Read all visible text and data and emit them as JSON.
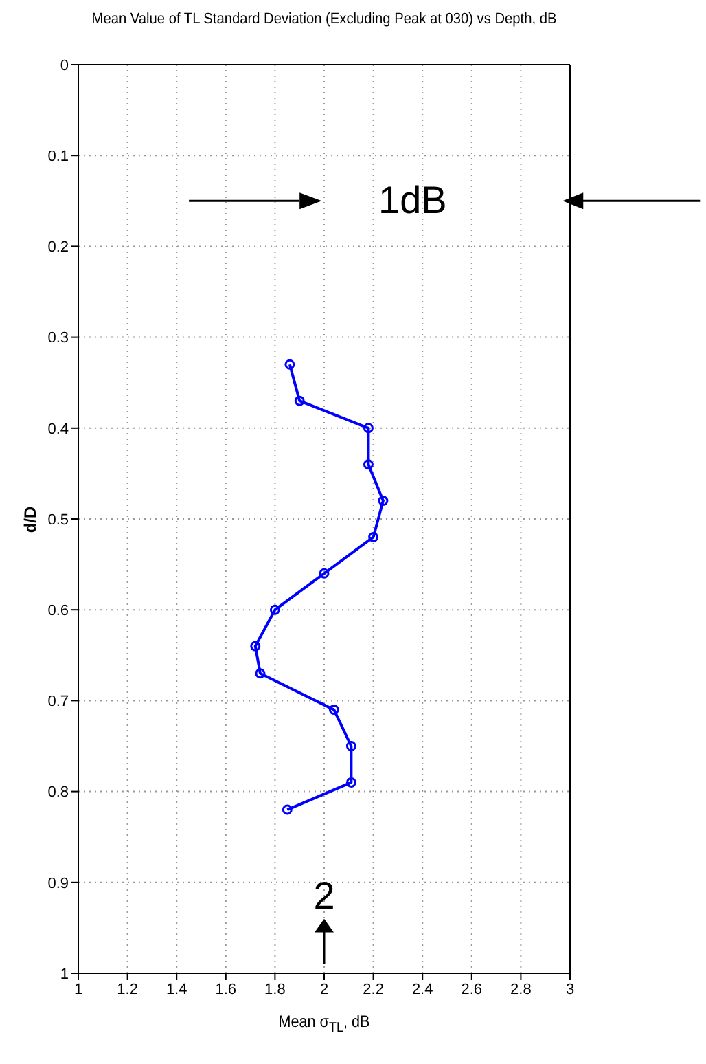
{
  "chart_data": {
    "type": "line",
    "title": "Mean Value of TL Standard Deviation (Excluding Peak at 030) vs Depth, dB",
    "xlabel": "Mean σ$_{TL}$, dB",
    "ylabel": "d/D",
    "series": [
      {
        "color": "#0000ff",
        "x": [
          1.86,
          1.9,
          2.18,
          2.18,
          2.24,
          2.2,
          2.0,
          1.8,
          1.72,
          1.74,
          2.04,
          2.11,
          2.11,
          1.85
        ],
        "values": [
          0.33,
          0.37,
          0.4,
          0.44,
          0.48,
          0.52,
          0.56,
          0.6,
          0.64,
          0.67,
          0.71,
          0.75,
          0.79,
          0.82
        ]
      }
    ],
    "xlim": [
      1,
      3
    ],
    "xticks": [
      1,
      1.2,
      1.4,
      1.6,
      1.8,
      2,
      2.2,
      2.4,
      2.6,
      2.8,
      3
    ],
    "ylim": [
      1,
      0
    ],
    "yticks": [
      0,
      0.1,
      0.2,
      0.3,
      0.4,
      0.5,
      0.6,
      0.7,
      0.8,
      0.9,
      1
    ],
    "grid": true,
    "marker": "circle",
    "line_style": "solid",
    "annotations": [
      "1dB",
      "2"
    ]
  }
}
